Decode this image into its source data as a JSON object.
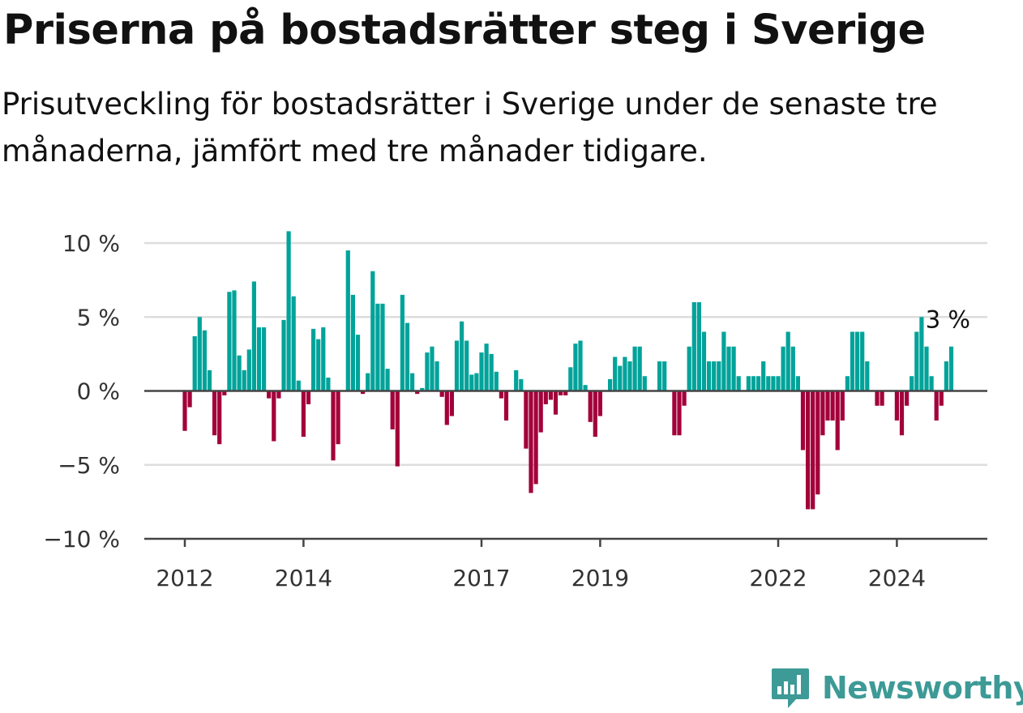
{
  "title": "Priserna på bostadsrätter steg i Sverige",
  "subtitle": "Prisutveckling för bostadsrätter i Sverige under de senaste tre månaderna, jämfört med tre månader tidigare.",
  "logo_text": "Newsworthy",
  "colors": {
    "positive": "#00a39a",
    "negative": "#a3003a",
    "grid": "#dddddd",
    "axis": "#444444",
    "brand": "#3d9a96"
  },
  "chart_data": {
    "type": "bar",
    "title": "Priserna på bostadsrätter steg i Sverige",
    "xlabel": "",
    "ylabel": "",
    "ylim": [
      -10,
      10
    ],
    "grid": true,
    "y_ticks": [
      10,
      5,
      0,
      -5,
      -10
    ],
    "y_tick_labels": [
      "10 %",
      "5 %",
      "0 %",
      "−5 %",
      "−10 %"
    ],
    "x_tick_labels": [
      {
        "label": "2012",
        "index": 0
      },
      {
        "label": "2014",
        "index": 24
      },
      {
        "label": "2017",
        "index": 60
      },
      {
        "label": "2019",
        "index": 84
      },
      {
        "label": "2022",
        "index": 120
      },
      {
        "label": "2024",
        "index": 144
      }
    ],
    "annotation": {
      "label": "3 %",
      "index": 150
    },
    "values": [
      -2.7,
      -1.1,
      3.7,
      5.0,
      4.1,
      1.4,
      -3.0,
      -3.6,
      -0.3,
      6.7,
      6.8,
      2.4,
      1.4,
      2.8,
      7.4,
      4.3,
      4.3,
      -0.5,
      -3.4,
      -0.5,
      4.8,
      10.8,
      6.4,
      0.7,
      -3.1,
      -0.9,
      4.2,
      3.5,
      4.3,
      0.9,
      -4.7,
      -3.6,
      0.0,
      9.5,
      6.5,
      3.8,
      -0.2,
      1.2,
      8.1,
      5.9,
      5.9,
      1.5,
      -2.6,
      -5.1,
      6.5,
      4.6,
      1.2,
      -0.2,
      0.2,
      2.6,
      3.0,
      2.0,
      -0.4,
      -2.3,
      -1.7,
      3.4,
      4.7,
      3.4,
      1.1,
      1.2,
      2.6,
      3.2,
      2.5,
      1.3,
      -0.5,
      -2.0,
      0.0,
      1.4,
      0.8,
      -3.9,
      -6.9,
      -6.3,
      -2.8,
      -0.9,
      -0.6,
      -1.6,
      -0.3,
      -0.3,
      1.6,
      3.2,
      3.4,
      0.4,
      -2.1,
      -3.1,
      -1.7,
      0.0,
      0.8,
      2.3,
      1.7,
      2.3,
      2.0,
      3.0,
      3.0,
      1.0,
      0.0,
      0.0,
      2.0,
      2.0,
      0.0,
      -3.0,
      -3.0,
      -1.0,
      3.0,
      6.0,
      6.0,
      4.0,
      2.0,
      2.0,
      2.0,
      4.0,
      3.0,
      3.0,
      1.0,
      0.0,
      1.0,
      1.0,
      1.0,
      2.0,
      1.0,
      1.0,
      1.0,
      3.0,
      4.0,
      3.0,
      1.0,
      -4.0,
      -8.0,
      -8.0,
      -7.0,
      -3.0,
      -2.0,
      -2.0,
      -4.0,
      -2.0,
      1.0,
      4.0,
      4.0,
      4.0,
      2.0,
      0.0,
      -1.0,
      -1.0,
      0.0,
      0.0,
      -2.0,
      -3.0,
      -1.0,
      1.0,
      4.0,
      5.0,
      3.0,
      1.0,
      -2.0,
      -1.0,
      2.0,
      3.0
    ]
  }
}
